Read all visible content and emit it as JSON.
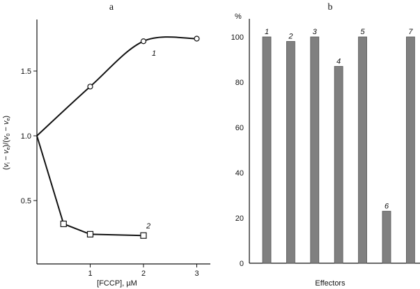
{
  "chart_data": [
    {
      "type": "line",
      "panel_label": "a",
      "xlabel": "[FCCP], µM",
      "ylabel": "(v_i − v_e)/(v_0 − v_e)",
      "xlim": [
        0,
        3.3
      ],
      "ylim": [
        0,
        1.9
      ],
      "xticks": [
        "1",
        "2",
        "3"
      ],
      "xtick_values": [
        1,
        2,
        3
      ],
      "yticks": [
        "0.5",
        "1.0",
        "1.5"
      ],
      "ytick_values": [
        0.5,
        1.0,
        1.5
      ],
      "grid": false,
      "series": [
        {
          "name": "1",
          "marker": "circle",
          "line": "smooth",
          "x": [
            0,
            1,
            2,
            3
          ],
          "y": [
            1.0,
            1.38,
            1.73,
            1.75
          ]
        },
        {
          "name": "2",
          "marker": "square",
          "line": "straight",
          "x": [
            0,
            0.5,
            1,
            2
          ],
          "y": [
            1.0,
            0.32,
            0.24,
            0.23
          ]
        }
      ]
    },
    {
      "type": "bar",
      "panel_label": "b",
      "xlabel": "Effectors",
      "ylabel": "%",
      "ylim": [
        0,
        105
      ],
      "yticks": [
        "0",
        "20",
        "40",
        "60",
        "80",
        "100"
      ],
      "ytick_values": [
        0,
        20,
        40,
        60,
        80,
        100
      ],
      "grid": false,
      "bar_color": "#808080",
      "categories": [
        "1",
        "2",
        "3",
        "4",
        "5",
        "6",
        "7"
      ],
      "values": [
        100,
        98,
        100,
        87,
        100,
        23,
        100
      ]
    }
  ]
}
